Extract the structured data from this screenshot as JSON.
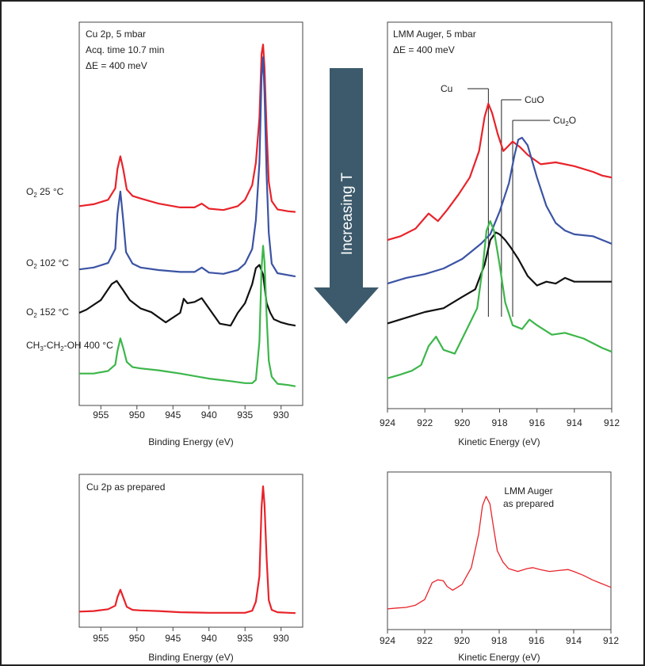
{
  "colors": {
    "red": "#e8232a",
    "blue": "#3b53a4",
    "black": "#111111",
    "green": "#3cb64a",
    "arrow": "#3c5a6b"
  },
  "arrow_label": "Increasing T",
  "chart_data": [
    {
      "id": "cu2p",
      "type": "line",
      "notes": [
        "Cu 2p, 5 mbar",
        "Acq. time 10.7 min",
        "ΔE = 400 meV"
      ],
      "xlabel": "Binding Energy (eV)",
      "ylabel": "",
      "xlim": [
        958,
        927
      ],
      "xticks": [
        955,
        950,
        945,
        940,
        935,
        930
      ],
      "series_labels": [
        {
          "base": "O",
          "sub": "2",
          "rest": " 25 °C",
          "series": 0
        },
        {
          "base": "O",
          "sub": "2",
          "rest": " 102 °C",
          "series": 1
        },
        {
          "base": "O",
          "sub": "2",
          "rest": " 152 °C",
          "series": 2
        },
        {
          "parts": [
            "CH",
            "3",
            "-CH",
            "2",
            "-OH 400 °C"
          ],
          "series": 3
        }
      ],
      "series": [
        {
          "color": "red",
          "x": [
            958,
            956,
            954,
            953,
            952.7,
            952.3,
            951.9,
            951.4,
            950.6,
            949.5,
            947,
            944,
            942,
            941,
            940,
            938,
            936,
            935,
            934,
            933.5,
            933,
            932.7,
            932.5,
            932.3,
            932,
            931.7,
            931.3,
            930.5,
            929,
            928
          ],
          "y": [
            2.52,
            2.55,
            2.62,
            2.8,
            3.1,
            3.3,
            3.1,
            2.78,
            2.68,
            2.64,
            2.56,
            2.5,
            2.5,
            2.56,
            2.48,
            2.46,
            2.52,
            2.62,
            2.85,
            3.2,
            3.9,
            4.9,
            5.05,
            4.7,
            3.7,
            2.9,
            2.6,
            2.47,
            2.44,
            2.43
          ]
        },
        {
          "color": "blue",
          "x": [
            958,
            956,
            954,
            953,
            952.7,
            952.3,
            951.9,
            951.5,
            950.6,
            949.5,
            947,
            944,
            942,
            941,
            940,
            938,
            936,
            935,
            934,
            933.5,
            933,
            932.7,
            932.5,
            932.3,
            932,
            931.7,
            931.3,
            930.5,
            929,
            928
          ],
          "y": [
            1.53,
            1.56,
            1.63,
            1.85,
            2.4,
            2.75,
            2.3,
            1.8,
            1.62,
            1.56,
            1.52,
            1.49,
            1.49,
            1.56,
            1.48,
            1.46,
            1.52,
            1.62,
            1.85,
            2.3,
            3.2,
            4.55,
            4.85,
            4.3,
            3.0,
            2.1,
            1.62,
            1.47,
            1.44,
            1.42
          ]
        },
        {
          "color": "black",
          "x": [
            958,
            957,
            955,
            953.5,
            952.8,
            952,
            951,
            949.5,
            948,
            946,
            944,
            943.5,
            943,
            942,
            941,
            940,
            938.5,
            937,
            936,
            935,
            934,
            933.5,
            933,
            932.5,
            932,
            931.5,
            931,
            930,
            929,
            928
          ],
          "y": [
            0.85,
            0.9,
            1.05,
            1.3,
            1.35,
            1.22,
            1.05,
            0.92,
            0.86,
            0.7,
            0.85,
            1.07,
            1.0,
            1.02,
            1.08,
            0.92,
            0.68,
            0.65,
            0.85,
            1.0,
            1.3,
            1.55,
            1.6,
            1.45,
            1.0,
            0.85,
            0.75,
            0.7,
            0.67,
            0.65
          ]
        },
        {
          "color": "green",
          "x": [
            958,
            956,
            954,
            953,
            952.7,
            952.3,
            951.9,
            951.4,
            950.6,
            949.5,
            947,
            944,
            940,
            937,
            935,
            934,
            933.5,
            933,
            932.7,
            932.5,
            932.3,
            932,
            931.7,
            931.3,
            930.5,
            929,
            928
          ],
          "y": [
            -0.1,
            -0.1,
            -0.06,
            0.04,
            0.25,
            0.45,
            0.3,
            0.08,
            0.0,
            -0.02,
            -0.05,
            -0.1,
            -0.18,
            -0.22,
            -0.25,
            -0.25,
            -0.2,
            0.4,
            1.55,
            1.9,
            1.65,
            0.8,
            0.1,
            -0.15,
            -0.26,
            -0.28,
            -0.3
          ]
        }
      ]
    },
    {
      "id": "lmm",
      "type": "line",
      "notes": [
        "LMM Auger, 5 mbar",
        "ΔE = 400 meV"
      ],
      "xlabel": "Kinetic Energy (eV)",
      "ylabel": "",
      "xlim": [
        924,
        912
      ],
      "xticks": [
        924,
        922,
        920,
        918,
        916,
        914,
        912
      ],
      "markers": [
        {
          "label": "Cu",
          "x": 918.6
        },
        {
          "label": "CuO",
          "x": 917.9
        },
        {
          "label": "Cu",
          "sub": "2",
          "rest": "O",
          "x": 917.3
        }
      ],
      "series": [
        {
          "color": "red",
          "x": [
            924,
            923.3,
            922.5,
            921.8,
            921.3,
            920.8,
            920.2,
            919.6,
            919.1,
            918.8,
            918.6,
            918.4,
            918.1,
            917.8,
            917.5,
            917.3,
            916.9,
            916.5,
            915.8,
            915,
            914,
            913,
            912.5,
            912
          ],
          "y": [
            4.05,
            4.15,
            4.35,
            4.75,
            4.55,
            4.85,
            5.25,
            5.7,
            6.4,
            7.3,
            7.65,
            7.4,
            6.85,
            6.4,
            6.55,
            6.65,
            6.5,
            6.3,
            6.05,
            6.1,
            6.0,
            5.85,
            5.75,
            5.7
          ]
        },
        {
          "color": "blue",
          "x": [
            924,
            923,
            922,
            921,
            920,
            919.5,
            919,
            918.5,
            918,
            917.5,
            917.2,
            917,
            916.8,
            916.5,
            916,
            915.5,
            915,
            914.5,
            914,
            913,
            912.5,
            912
          ],
          "y": [
            2.9,
            3.05,
            3.15,
            3.3,
            3.55,
            3.75,
            3.95,
            4.2,
            4.8,
            5.55,
            6.3,
            6.7,
            6.75,
            6.55,
            5.7,
            4.95,
            4.5,
            4.3,
            4.2,
            4.15,
            4.05,
            3.95
          ]
        },
        {
          "color": "black",
          "x": [
            924,
            923,
            922,
            921,
            920,
            919.3,
            918.8,
            918.5,
            918.2,
            918,
            917.7,
            917.4,
            917,
            916.5,
            916,
            915.5,
            915,
            914.5,
            914,
            913,
            912
          ],
          "y": [
            1.85,
            2.0,
            2.15,
            2.25,
            2.55,
            2.75,
            3.4,
            4.05,
            4.25,
            4.2,
            4.05,
            3.85,
            3.55,
            3.1,
            2.85,
            2.95,
            2.9,
            3.05,
            2.95,
            2.95,
            2.95
          ]
        },
        {
          "color": "green",
          "x": [
            924,
            923.3,
            922.7,
            922.2,
            921.8,
            921.4,
            921,
            920.4,
            919.8,
            919.2,
            918.9,
            918.7,
            918.5,
            918.3,
            918,
            917.7,
            917.3,
            916.8,
            916.4,
            916,
            915.2,
            914.5,
            913.5,
            912.5,
            912
          ],
          "y": [
            0.4,
            0.5,
            0.6,
            0.75,
            1.25,
            1.5,
            1.15,
            1.05,
            1.65,
            2.25,
            3.35,
            4.3,
            4.55,
            4.3,
            3.4,
            2.4,
            1.8,
            1.7,
            1.95,
            1.8,
            1.55,
            1.6,
            1.45,
            1.2,
            1.1
          ]
        }
      ]
    },
    {
      "id": "cu2p_prepared",
      "type": "line",
      "notes": [
        "Cu 2p as prepared"
      ],
      "xlabel": "Binding Energy (eV)",
      "ylabel": "",
      "xlim": [
        958,
        927
      ],
      "xticks": [
        955,
        950,
        945,
        940,
        935,
        930
      ],
      "series": [
        {
          "color": "red",
          "x": [
            958,
            956,
            954,
            953,
            952.7,
            952.3,
            951.9,
            951.4,
            950.6,
            949.5,
            947,
            944,
            940,
            937,
            935,
            934,
            933.5,
            933,
            932.7,
            932.5,
            932.3,
            932,
            931.7,
            931.3,
            930.5,
            929,
            928
          ],
          "y": [
            0.02,
            0.04,
            0.1,
            0.22,
            0.5,
            0.75,
            0.5,
            0.18,
            0.08,
            0.06,
            0.04,
            0.0,
            -0.02,
            -0.02,
            -0.02,
            0.05,
            0.35,
            1.2,
            3.5,
            4.2,
            3.6,
            1.8,
            0.4,
            0.08,
            0.0,
            -0.02,
            -0.03
          ]
        }
      ]
    },
    {
      "id": "lmm_prepared",
      "type": "line",
      "notes": [
        "LMM Auger",
        "as prepared"
      ],
      "xlabel": "Kinetic Energy (eV)",
      "ylabel": "",
      "xlim": [
        924,
        912
      ],
      "xticks": [
        924,
        922,
        920,
        918,
        916,
        914,
        912
      ],
      "series": [
        {
          "color": "red",
          "x": [
            924,
            923.5,
            923,
            922.5,
            922,
            921.6,
            921.3,
            921,
            920.8,
            920.5,
            920,
            919.5,
            919.1,
            918.9,
            918.7,
            918.5,
            918.3,
            918.1,
            917.8,
            917.5,
            917,
            916.5,
            916.2,
            915.8,
            915.3,
            914.8,
            914.3,
            914,
            913.5,
            913,
            912.5,
            912
          ],
          "y": [
            0.3,
            0.35,
            0.38,
            0.5,
            0.8,
            1.7,
            1.85,
            1.8,
            1.5,
            1.3,
            1.6,
            2.5,
            4.3,
            5.8,
            6.3,
            5.9,
            4.6,
            3.4,
            2.8,
            2.45,
            2.3,
            2.45,
            2.5,
            2.4,
            2.3,
            2.35,
            2.4,
            2.3,
            2.1,
            1.85,
            1.65,
            1.45
          ]
        }
      ]
    }
  ]
}
